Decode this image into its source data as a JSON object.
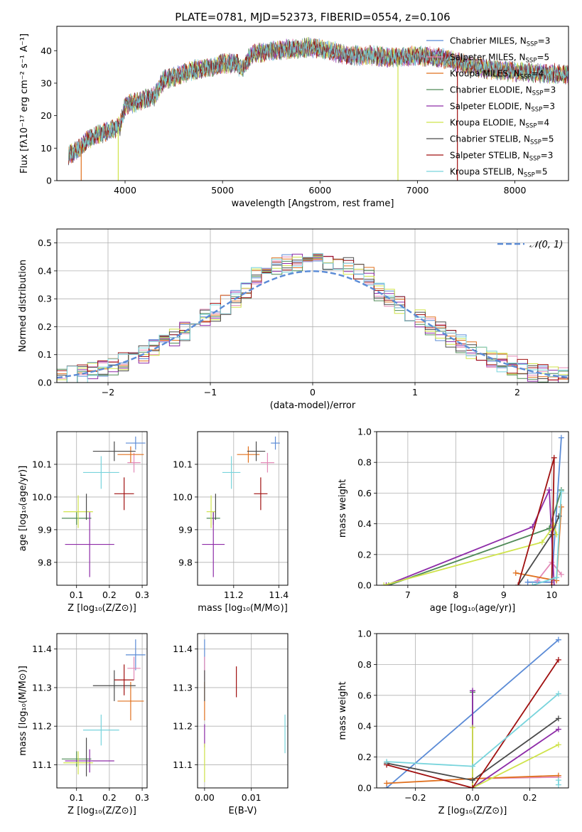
{
  "figure": {
    "title": "PLATE=0781, MJD=52373, FIBERID=0554, z=0.106"
  },
  "colors": {
    "chabrier_miles": "#5b8bd6",
    "salpeter_miles": "#e38ab7",
    "kroupa_miles": "#e0701e",
    "chabrier_elodie": "#4f8a57",
    "salpeter_elodie": "#8e2ca8",
    "kroupa_elodie": "#cfe34a",
    "chabrier_stelib": "#4a4a4a",
    "salpeter_stelib": "#a01010",
    "kroupa_stelib": "#78d4dc",
    "normal_curve": "#5b8bd6"
  },
  "chart_data": [
    {
      "id": "spectrum",
      "type": "line",
      "xlabel": "wavelength [Angstrom, rest frame]",
      "ylabel": "Flux [fλ10⁻¹⁷ erg cm⁻² s⁻¹ A⁻¹]",
      "xlim": [
        3300,
        8550
      ],
      "ylim": [
        0,
        47.5
      ],
      "xticks": [
        "4000",
        "5000",
        "6000",
        "7000",
        "8000"
      ],
      "yticks": [
        "0",
        "10",
        "20",
        "30",
        "40"
      ],
      "grid": false,
      "legend_position": "top-right",
      "legend": [
        {
          "name": "Chabrier MILES, N_SSP=3",
          "text": "Chabrier MILES, N",
          "sub": "SSP",
          "suffix": "=3"
        },
        {
          "name": "Salpeter MILES, N_SSP=5",
          "text": "Salpeter MILES, N",
          "sub": "SSP",
          "suffix": "=5"
        },
        {
          "name": "Kroupa MILES, N_SSP=4",
          "text": "Kroupa MILES, N",
          "sub": "SSP",
          "suffix": "=4"
        },
        {
          "name": "Chabrier ELODIE, N_SSP=3",
          "text": "Chabrier ELODIE, N",
          "sub": "SSP",
          "suffix": "=3"
        },
        {
          "name": "Salpeter ELODIE, N_SSP=3",
          "text": "Salpeter ELODIE, N",
          "sub": "SSP",
          "suffix": "=3"
        },
        {
          "name": "Kroupa ELODIE, N_SSP=4",
          "text": "Kroupa ELODIE, N",
          "sub": "SSP",
          "suffix": "=4"
        },
        {
          "name": "Chabrier STELIB, N_SSP=5",
          "text": "Chabrier STELIB, N",
          "sub": "SSP",
          "suffix": "=5"
        },
        {
          "name": "Salpeter STELIB, N_SSP=3",
          "text": "Salpeter STELIB, N",
          "sub": "SSP",
          "suffix": "=3"
        },
        {
          "name": "Kroupa STELIB, N_SSP=5",
          "text": "Kroupa STELIB, N",
          "sub": "SSP",
          "suffix": "=5"
        }
      ],
      "continuum": [
        [
          3420,
          8
        ],
        [
          3500,
          9
        ],
        [
          3600,
          12
        ],
        [
          3700,
          14
        ],
        [
          3800,
          15
        ],
        [
          3900,
          16
        ],
        [
          3950,
          17
        ],
        [
          4000,
          23
        ],
        [
          4100,
          24
        ],
        [
          4200,
          25
        ],
        [
          4300,
          26
        ],
        [
          4400,
          31
        ],
        [
          4500,
          32
        ],
        [
          4700,
          34
        ],
        [
          4900,
          35
        ],
        [
          5000,
          36
        ],
        [
          5150,
          36
        ],
        [
          5200,
          34
        ],
        [
          5300,
          39
        ],
        [
          5500,
          40
        ],
        [
          5700,
          40.5
        ],
        [
          5900,
          41
        ],
        [
          6100,
          40
        ],
        [
          6300,
          38.5
        ],
        [
          6500,
          38.5
        ],
        [
          6700,
          38
        ],
        [
          6800,
          38
        ],
        [
          7000,
          38.5
        ],
        [
          7200,
          38
        ],
        [
          7400,
          36.5
        ],
        [
          7600,
          35
        ],
        [
          7800,
          34
        ],
        [
          8000,
          33.5
        ],
        [
          8200,
          33
        ],
        [
          8400,
          33
        ],
        [
          8550,
          32.5
        ]
      ],
      "spikes": [
        {
          "x": 3930,
          "y": 0,
          "series": "kroupa_elodie"
        },
        {
          "x": 6800,
          "y": 0,
          "series": "kroupa_elodie"
        },
        {
          "x": 7410,
          "y": 0,
          "series": "salpeter_stelib"
        },
        {
          "x": 3550,
          "y": 0,
          "series": "kroupa_miles"
        }
      ]
    },
    {
      "id": "residuals",
      "type": "histogram",
      "xlabel": "(data-model)/error",
      "ylabel": "Normed distribution",
      "xlim": [
        -2.5,
        2.5
      ],
      "ylim": [
        0,
        0.55
      ],
      "xticks": [
        "−2",
        "−1",
        "0",
        "1",
        "2"
      ],
      "yticks": [
        "0.0",
        "0.1",
        "0.2",
        "0.3",
        "0.4",
        "0.5"
      ],
      "grid": true,
      "legend_position": "top-right",
      "legend": [
        {
          "name": "𝒩(0, 1)"
        }
      ],
      "bin_width": 0.1
    },
    {
      "id": "age_vs_Z",
      "type": "errorbar",
      "xlabel": "Z [log₁₀(Z/Z⊙)]",
      "ylabel": "age  [log₁₀(age/yr)]",
      "xlim": [
        0.04,
        0.315
      ],
      "ylim": [
        9.73,
        10.2
      ],
      "xticks": [
        "0.1",
        "0.2",
        "0.3"
      ],
      "yticks": [
        "9.8",
        "9.9",
        "10.0",
        "10.1"
      ],
      "grid": true,
      "points": [
        {
          "series": "chabrier_miles",
          "x": 0.28,
          "y": 10.165,
          "xerr": 0.03,
          "yerr": 0.02
        },
        {
          "series": "salpeter_miles",
          "x": 0.275,
          "y": 10.105,
          "xerr": 0.02,
          "yerr": 0.03
        },
        {
          "series": "kroupa_miles",
          "x": 0.265,
          "y": 10.13,
          "xerr": 0.04,
          "yerr": 0.025
        },
        {
          "series": "chabrier_elodie",
          "x": 0.1,
          "y": 9.935,
          "xerr": 0.045,
          "yerr": 0.02
        },
        {
          "series": "salpeter_elodie",
          "x": 0.14,
          "y": 9.855,
          "xerr": 0.075,
          "yerr": 0.1
        },
        {
          "series": "kroupa_elodie",
          "x": 0.105,
          "y": 9.955,
          "xerr": 0.045,
          "yerr": 0.05
        },
        {
          "series": "chabrier_stelib",
          "x": 0.215,
          "y": 10.14,
          "xerr": 0.065,
          "yerr": 0.03
        },
        {
          "series": "salpeter_stelib",
          "x": 0.245,
          "y": 10.01,
          "xerr": 0.03,
          "yerr": 0.05
        },
        {
          "series": "kroupa_stelib",
          "x": 0.175,
          "y": 10.075,
          "xerr": 0.055,
          "yerr": 0.05
        },
        {
          "series": "chabrier_stelib",
          "x": 0.13,
          "y": 9.97,
          "xerr": 0.0,
          "yerr": 0.04
        }
      ]
    },
    {
      "id": "age_vs_mass",
      "type": "errorbar",
      "xlabel": "mass [log₁₀(M/M⊙)]",
      "ylabel": "",
      "xlim": [
        11.04,
        11.44
      ],
      "ylim": [
        9.73,
        10.2
      ],
      "xticks": [
        "11.2",
        "11.4"
      ],
      "yticks": [
        "9.8",
        "9.9",
        "10.0",
        "10.1"
      ],
      "grid": true,
      "points": [
        {
          "series": "chabrier_miles",
          "x": 11.385,
          "y": 10.165,
          "xerr": 0.02,
          "yerr": 0.02
        },
        {
          "series": "salpeter_miles",
          "x": 11.35,
          "y": 10.105,
          "xerr": 0.03,
          "yerr": 0.03
        },
        {
          "series": "kroupa_miles",
          "x": 11.265,
          "y": 10.13,
          "xerr": 0.05,
          "yerr": 0.025
        },
        {
          "series": "chabrier_elodie",
          "x": 11.11,
          "y": 9.935,
          "xerr": 0.03,
          "yerr": 0.02
        },
        {
          "series": "salpeter_elodie",
          "x": 11.11,
          "y": 9.855,
          "xerr": 0.05,
          "yerr": 0.1
        },
        {
          "series": "kroupa_elodie",
          "x": 11.1,
          "y": 9.955,
          "xerr": 0.02,
          "yerr": 0.05
        },
        {
          "series": "chabrier_stelib",
          "x": 11.3,
          "y": 10.14,
          "xerr": 0.04,
          "yerr": 0.03
        },
        {
          "series": "salpeter_stelib",
          "x": 11.32,
          "y": 10.01,
          "xerr": 0.03,
          "yerr": 0.05
        },
        {
          "series": "kroupa_stelib",
          "x": 11.19,
          "y": 10.075,
          "xerr": 0.04,
          "yerr": 0.05
        },
        {
          "series": "chabrier_stelib",
          "x": 11.12,
          "y": 9.97,
          "xerr": 0.0,
          "yerr": 0.04
        }
      ]
    },
    {
      "id": "mass_weight_vs_age",
      "type": "line",
      "xlabel": "age  [log₁₀(age/yr)]",
      "ylabel": "mass weight",
      "xlim": [
        6.35,
        10.35
      ],
      "ylim": [
        0,
        1.0
      ],
      "xticks": [
        "7",
        "8",
        "9",
        "10"
      ],
      "yticks": [
        "0.0",
        "0.2",
        "0.4",
        "0.6",
        "0.8",
        "1.0"
      ],
      "grid": true,
      "series": [
        {
          "series": "chabrier_miles",
          "x": [
            9.5,
            10.0,
            10.2
          ],
          "y": [
            0.02,
            0.02,
            0.96
          ]
        },
        {
          "series": "salpeter_miles",
          "x": [
            9.7,
            10.0,
            10.2
          ],
          "y": [
            0.03,
            0.15,
            0.07
          ]
        },
        {
          "series": "kroupa_miles",
          "x": [
            9.25,
            10.1,
            10.2
          ],
          "y": [
            0.08,
            0.03,
            0.51
          ]
        },
        {
          "series": "chabrier_elodie",
          "x": [
            6.6,
            9.95,
            10.2
          ],
          "y": [
            0.0,
            0.37,
            0.62
          ]
        },
        {
          "series": "salpeter_elodie",
          "x": [
            6.55,
            9.6,
            9.95,
            10.05
          ],
          "y": [
            0.0,
            0.38,
            0.62,
            0.0
          ]
        },
        {
          "series": "kroupa_elodie",
          "x": [
            6.5,
            9.8,
            10.05,
            10.1
          ],
          "y": [
            0.0,
            0.28,
            0.39,
            0.33
          ]
        },
        {
          "series": "chabrier_stelib",
          "x": [
            9.3,
            10.0,
            10.15
          ],
          "y": [
            0.0,
            0.33,
            0.45
          ]
        },
        {
          "series": "salpeter_stelib",
          "x": [
            9.3,
            10.05,
            10.0
          ],
          "y": [
            0.0,
            0.83,
            0.0
          ]
        },
        {
          "series": "kroupa_stelib",
          "x": [
            9.6,
            10.1,
            10.2
          ],
          "y": [
            0.0,
            0.05,
            0.61
          ]
        }
      ]
    },
    {
      "id": "mass_vs_Z",
      "type": "errorbar",
      "xlabel": "Z [log₁₀(Z/Z⊙)]",
      "ylabel": "mass [log₁₀(M/M⊙)]",
      "xlim": [
        0.04,
        0.315
      ],
      "ylim": [
        11.04,
        11.44
      ],
      "xticks": [
        "0.1",
        "0.2",
        "0.3"
      ],
      "yticks": [
        "11.1",
        "11.2",
        "11.3",
        "11.4"
      ],
      "grid": true,
      "points": [
        {
          "series": "chabrier_miles",
          "x": 0.28,
          "y": 11.385,
          "xerr": 0.03,
          "yerr": 0.04
        },
        {
          "series": "salpeter_miles",
          "x": 0.275,
          "y": 11.35,
          "xerr": 0.02,
          "yerr": 0.03
        },
        {
          "series": "kroupa_miles",
          "x": 0.265,
          "y": 11.265,
          "xerr": 0.04,
          "yerr": 0.05
        },
        {
          "series": "chabrier_elodie",
          "x": 0.1,
          "y": 11.115,
          "xerr": 0.045,
          "yerr": 0.02
        },
        {
          "series": "salpeter_elodie",
          "x": 0.14,
          "y": 11.11,
          "xerr": 0.075,
          "yerr": 0.03
        },
        {
          "series": "kroupa_elodie",
          "x": 0.105,
          "y": 11.105,
          "xerr": 0.045,
          "yerr": 0.03
        },
        {
          "series": "chabrier_stelib",
          "x": 0.215,
          "y": 11.305,
          "xerr": 0.065,
          "yerr": 0.04
        },
        {
          "series": "salpeter_stelib",
          "x": 0.245,
          "y": 11.32,
          "xerr": 0.03,
          "yerr": 0.04
        },
        {
          "series": "kroupa_stelib",
          "x": 0.175,
          "y": 11.19,
          "xerr": 0.055,
          "yerr": 0.04
        },
        {
          "series": "chabrier_stelib",
          "x": 0.13,
          "y": 11.12,
          "xerr": 0.0,
          "yerr": 0.05
        }
      ]
    },
    {
      "id": "mass_vs_ebv",
      "type": "errorbar",
      "xlabel": "E(B-V)",
      "ylabel": "",
      "xlim": [
        -0.0015,
        0.0178
      ],
      "ylim": [
        11.04,
        11.44
      ],
      "xticks": [
        "0.00",
        "0.01"
      ],
      "yticks": [
        "11.1",
        "11.2",
        "11.3",
        "11.4"
      ],
      "grid": true,
      "points": [
        {
          "series": "chabrier_miles",
          "x": 0.0,
          "y": 11.385,
          "xerr": 0,
          "yerr": 0.04
        },
        {
          "series": "salpeter_miles",
          "x": 0.0,
          "y": 11.35,
          "xerr": 0,
          "yerr": 0.03
        },
        {
          "series": "kroupa_miles",
          "x": 0.0,
          "y": 11.265,
          "xerr": 0,
          "yerr": 0.05
        },
        {
          "series": "salpeter_elodie",
          "x": 0.0,
          "y": 11.175,
          "xerr": 0,
          "yerr": 0.03
        },
        {
          "series": "kroupa_elodie",
          "x": 0.0,
          "y": 11.105,
          "xerr": 0,
          "yerr": 0.05
        },
        {
          "series": "chabrier_stelib",
          "x": 0.0,
          "y": 11.305,
          "xerr": 0,
          "yerr": 0.04
        },
        {
          "series": "salpeter_stelib",
          "x": 0.0068,
          "y": 11.315,
          "xerr": 0,
          "yerr": 0.04
        },
        {
          "series": "kroupa_stelib",
          "x": 0.0172,
          "y": 11.18,
          "xerr": 0,
          "yerr": 0.05
        }
      ]
    },
    {
      "id": "mass_weight_vs_Z",
      "type": "line",
      "xlabel": "Z [log₁₀(Z/Z⊙)]",
      "ylabel": "mass weight",
      "xlim": [
        -0.335,
        0.335
      ],
      "ylim": [
        0,
        1.0
      ],
      "xticks": [
        "−0.2",
        "0.0",
        "0.2"
      ],
      "yticks": [
        "0.0",
        "0.2",
        "0.4",
        "0.6",
        "0.8",
        "1.0"
      ],
      "grid": true,
      "series": [
        {
          "series": "chabrier_miles",
          "x": [
            -0.3,
            0.3
          ],
          "y": [
            0.0,
            0.96
          ]
        },
        {
          "series": "salpeter_miles",
          "x": [
            0.0,
            0.3
          ],
          "y": [
            0.06,
            0.07
          ]
        },
        {
          "series": "kroupa_miles",
          "x": [
            -0.3,
            0.0,
            0.3
          ],
          "y": [
            0.03,
            0.06,
            0.08
          ]
        },
        {
          "series": "chabrier_elodie",
          "x": [
            0.0,
            0.0
          ],
          "y": [
            0.0,
            0.62
          ]
        },
        {
          "series": "salpeter_elodie",
          "x": [
            0.0,
            0.0,
            0.3
          ],
          "y": [
            0.63,
            0.0,
            0.38
          ]
        },
        {
          "series": "kroupa_elodie",
          "x": [
            0.0,
            0.0,
            0.3
          ],
          "y": [
            0.39,
            0.0,
            0.28
          ]
        },
        {
          "series": "chabrier_stelib",
          "x": [
            -0.3,
            0.0,
            0.3
          ],
          "y": [
            0.16,
            0.05,
            0.45
          ]
        },
        {
          "series": "salpeter_stelib",
          "x": [
            -0.3,
            0.0,
            0.3
          ],
          "y": [
            0.15,
            0.0,
            0.83
          ]
        },
        {
          "series": "kroupa_stelib",
          "x": [
            -0.3,
            0.0,
            0.3
          ],
          "y": [
            0.17,
            0.14,
            0.61
          ]
        },
        {
          "series": "kroupa_stelib",
          "x": [
            0.3,
            0.3
          ],
          "y": [
            0.02,
            0.05
          ]
        }
      ]
    }
  ]
}
